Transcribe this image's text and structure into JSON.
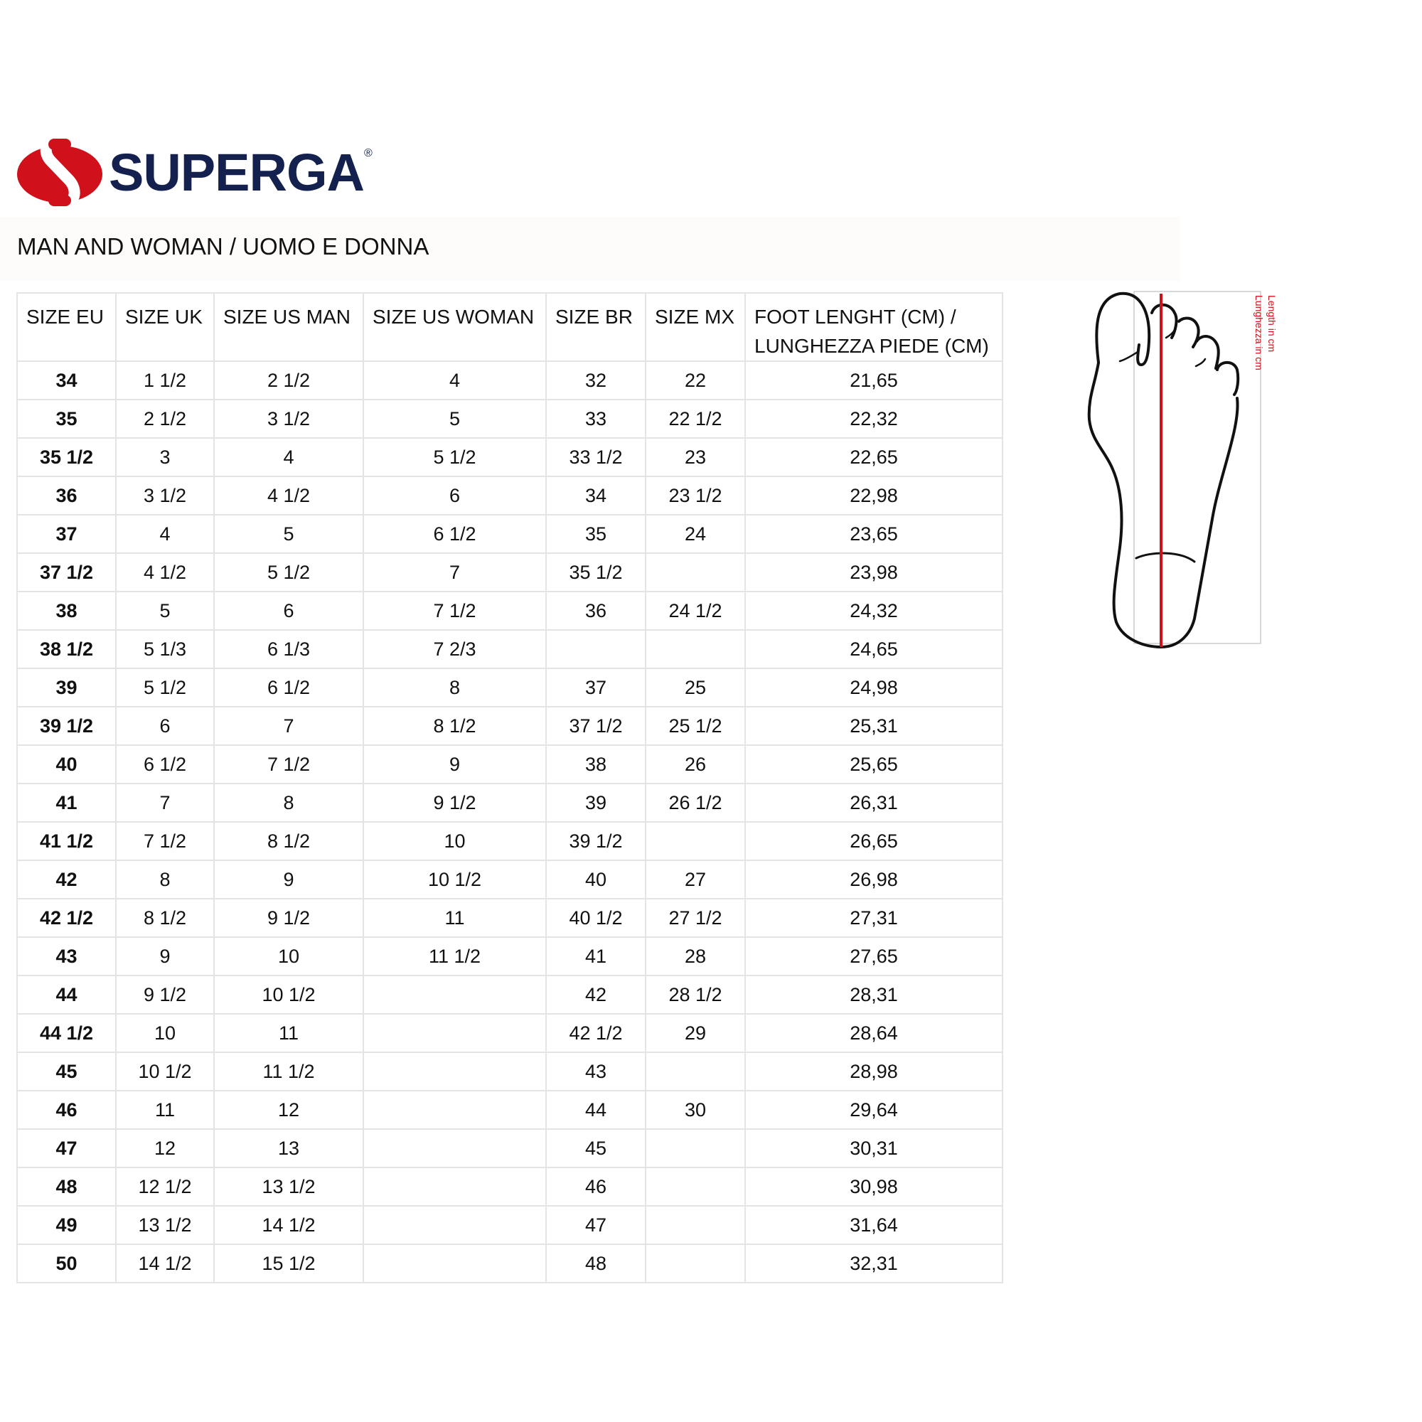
{
  "brand": {
    "name": "SUPERGA",
    "reg": "®",
    "colors": {
      "red": "#d0111c",
      "navy": "#14214f"
    }
  },
  "title": "MAN AND WOMAN / UOMO E DONNA",
  "table": {
    "headers": [
      "SIZE EU",
      "SIZE UK",
      "SIZE US MAN",
      "SIZE US WOMAN",
      "SIZE BR",
      "SIZE MX",
      "FOOT LENGHT (CM) /",
      "LUNGHEZZA PIEDE (CM)"
    ],
    "rows": [
      [
        "34",
        "1 1/2",
        "2 1/2",
        "4",
        "32",
        "22",
        "21,65"
      ],
      [
        "35",
        "2 1/2",
        "3 1/2",
        "5",
        "33",
        "22 1/2",
        "22,32"
      ],
      [
        "35 1/2",
        "3",
        "4",
        "5 1/2",
        "33 1/2",
        "23",
        "22,65"
      ],
      [
        "36",
        "3 1/2",
        "4 1/2",
        "6",
        "34",
        "23 1/2",
        "22,98"
      ],
      [
        "37",
        "4",
        "5",
        "6 1/2",
        "35",
        "24",
        "23,65"
      ],
      [
        "37 1/2",
        "4 1/2",
        "5 1/2",
        "7",
        "35 1/2",
        "",
        "23,98"
      ],
      [
        "38",
        "5",
        "6",
        "7 1/2",
        "36",
        "24 1/2",
        "24,32"
      ],
      [
        "38 1/2",
        "5 1/3",
        "6 1/3",
        "7 2/3",
        "",
        "",
        "24,65"
      ],
      [
        "39",
        "5 1/2",
        "6 1/2",
        "8",
        "37",
        "25",
        "24,98"
      ],
      [
        "39 1/2",
        "6",
        "7",
        "8 1/2",
        "37 1/2",
        "25 1/2",
        "25,31"
      ],
      [
        "40",
        "6 1/2",
        "7 1/2",
        "9",
        "38",
        "26",
        "25,65"
      ],
      [
        "41",
        "7",
        "8",
        "9 1/2",
        "39",
        "26 1/2",
        "26,31"
      ],
      [
        "41 1/2",
        "7 1/2",
        "8 1/2",
        "10",
        "39 1/2",
        "",
        "26,65"
      ],
      [
        "42",
        "8",
        "9",
        "10 1/2",
        "40",
        "27",
        "26,98"
      ],
      [
        "42 1/2",
        "8 1/2",
        "9 1/2",
        "11",
        "40 1/2",
        "27 1/2",
        "27,31"
      ],
      [
        "43",
        "9",
        "10",
        "11 1/2",
        "41",
        "28",
        "27,65"
      ],
      [
        "44",
        "9 1/2",
        "10 1/2",
        "",
        "42",
        "28 1/2",
        "28,31"
      ],
      [
        "44 1/2",
        "10",
        "11",
        "",
        "42 1/2",
        "29",
        "28,64"
      ],
      [
        "45",
        "10 1/2",
        "11 1/2",
        "",
        "43",
        "",
        "28,98"
      ],
      [
        "46",
        "11",
        "12",
        "",
        "44",
        "30",
        "29,64"
      ],
      [
        "47",
        "12",
        "13",
        "",
        "45",
        "",
        "30,31"
      ],
      [
        "48",
        "12 1/2",
        "13 1/2",
        "",
        "46",
        "",
        "30,98"
      ],
      [
        "49",
        "13 1/2",
        "14 1/2",
        "",
        "47",
        "",
        "31,64"
      ],
      [
        "50",
        "14 1/2",
        "15 1/2",
        "",
        "48",
        "",
        "32,31"
      ]
    ]
  },
  "foot_figure": {
    "label_en": "Length in cm",
    "label_it": "Lunghezza in cm",
    "line_color": "#d0111c"
  }
}
